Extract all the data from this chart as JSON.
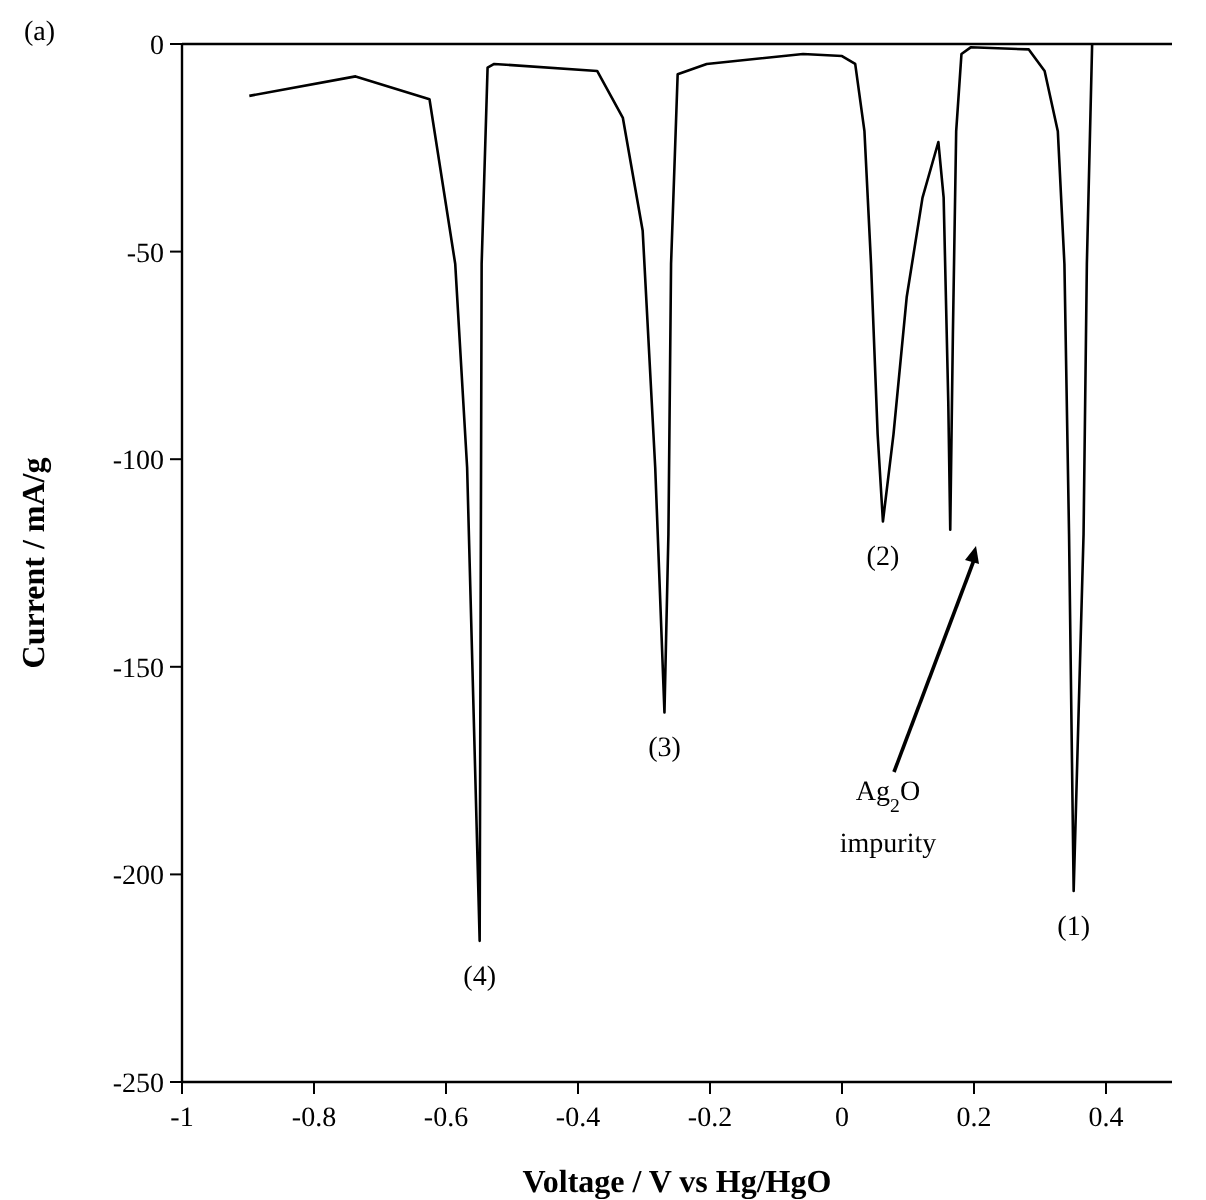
{
  "chart_data": {
    "type": "line",
    "xlabel": "Voltage / V vs Hg/HgO",
    "ylabel": "Current / mA/g",
    "xlim": [
      -1,
      0.5
    ],
    "xticks": [
      -1,
      -0.8,
      -0.6,
      -0.4,
      -0.2,
      0,
      0.2,
      0.4
    ],
    "ylim": [
      -250,
      0
    ],
    "yticks": [
      -250,
      -200,
      -150,
      -100,
      -50,
      0
    ],
    "grid": false,
    "marker": "none",
    "line_style": "solid",
    "series": [
      {
        "color": "#000000",
        "x": [
          -0.898,
          -0.737,
          -0.625,
          -0.586,
          -0.568,
          -0.549,
          -0.546,
          -0.537,
          -0.527,
          -0.371,
          -0.332,
          -0.302,
          -0.283,
          -0.269,
          -0.263,
          -0.259,
          -0.249,
          -0.205,
          -0.059,
          0,
          0.02,
          0.034,
          0.044,
          0.054,
          0.062,
          0.078,
          0.098,
          0.122,
          0.146,
          0.154,
          0.161,
          0.164,
          0.168,
          0.173,
          0.181,
          0.195,
          0.283,
          0.307,
          0.327,
          0.337,
          0.344,
          0.351,
          0.366,
          0.371,
          0.379
        ],
        "values": [
          -12.5,
          -7.8,
          -13.3,
          -53,
          -102,
          -216,
          -53,
          -5.7,
          -4.8,
          -6.5,
          -17.8,
          -45,
          -102,
          -161,
          -118,
          -53,
          -7.3,
          -4.8,
          -2.4,
          -2.9,
          -4.8,
          -21,
          -53,
          -94,
          -115,
          -94,
          -61,
          -37,
          -23.6,
          -37,
          -86,
          -117,
          -70,
          -21,
          -2.4,
          -0.8,
          -1.3,
          -6.5,
          -21,
          -53,
          -118,
          -204,
          -118,
          -53,
          0
        ]
      }
    ],
    "annotations": [
      "(a)",
      {
        "text": "(1)",
        "x": 0.351,
        "y": -204
      },
      {
        "text": "(2)",
        "x": 0.062,
        "y": -115
      },
      {
        "text": "(3)",
        "x": -0.269,
        "y": -161
      },
      {
        "text": "(4)",
        "x": -0.549,
        "y": -216
      },
      "Ag$_{2}$O impurity"
    ]
  }
}
